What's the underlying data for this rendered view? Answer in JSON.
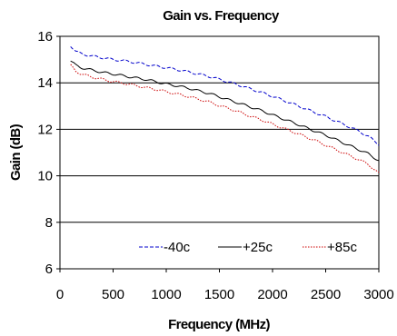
{
  "chart_data": {
    "type": "line",
    "title": "Gain vs. Frequency",
    "xlabel": "Frequency (MHz)",
    "ylabel": "Gain (dB)",
    "xlim": [
      0,
      3000
    ],
    "ylim": [
      6,
      16
    ],
    "x_ticks": [
      0,
      500,
      1000,
      1500,
      2000,
      2500,
      3000
    ],
    "y_ticks": [
      6,
      8,
      10,
      12,
      14,
      16
    ],
    "grid": "horizontal",
    "legend_position": "bottom-right inside",
    "x": [
      100,
      150,
      200,
      300,
      400,
      500,
      600,
      700,
      800,
      900,
      1000,
      1100,
      1200,
      1300,
      1400,
      1500,
      1600,
      1700,
      1800,
      1900,
      2000,
      2100,
      2200,
      2300,
      2400,
      2500,
      2600,
      2700,
      2800,
      2900,
      3000
    ],
    "series": [
      {
        "name": "-40c",
        "color": "#0000cc",
        "dash": "dashed",
        "values": [
          15.6,
          15.35,
          15.25,
          15.15,
          15.08,
          15.0,
          14.95,
          14.88,
          14.8,
          14.72,
          14.65,
          14.57,
          14.48,
          14.38,
          14.28,
          14.15,
          14.02,
          13.88,
          13.73,
          13.58,
          13.42,
          13.25,
          13.08,
          12.9,
          12.72,
          12.55,
          12.35,
          12.15,
          11.95,
          11.7,
          11.35
        ]
      },
      {
        "name": "+25c",
        "color": "#000000",
        "dash": "solid",
        "values": [
          14.95,
          14.75,
          14.65,
          14.55,
          14.45,
          14.38,
          14.3,
          14.22,
          14.15,
          14.05,
          13.95,
          13.87,
          13.78,
          13.66,
          13.55,
          13.4,
          13.25,
          13.1,
          12.95,
          12.8,
          12.62,
          12.45,
          12.28,
          12.1,
          11.92,
          11.75,
          11.55,
          11.35,
          11.15,
          10.95,
          10.65
        ]
      },
      {
        "name": "+85c",
        "color": "#cc0000",
        "dash": "dotted",
        "values": [
          14.75,
          14.5,
          14.38,
          14.25,
          14.15,
          14.05,
          13.98,
          13.9,
          13.8,
          13.72,
          13.62,
          13.52,
          13.42,
          13.3,
          13.18,
          13.02,
          12.88,
          12.72,
          12.55,
          12.4,
          12.22,
          12.05,
          11.88,
          11.7,
          11.52,
          11.32,
          11.12,
          10.92,
          10.72,
          10.5,
          10.1
        ]
      }
    ]
  }
}
